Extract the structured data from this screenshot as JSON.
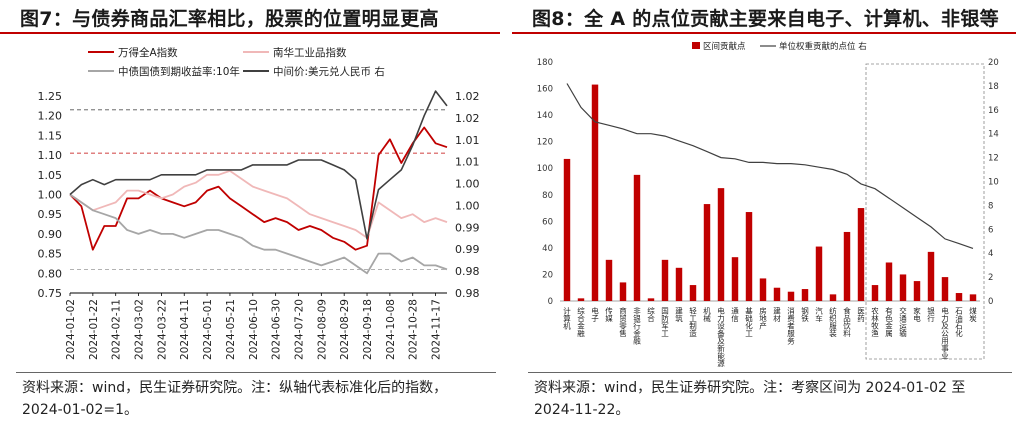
{
  "left": {
    "title": "图7：与债券商品汇率相比，股票的位置明显更高",
    "note_line1": "资料来源：wind，民生证券研究院。注：纵轴代表标准化后的指数，",
    "note_line2": "2024-01-02=1。",
    "chart_data": {
      "type": "line",
      "x": [
        "2024-01-02",
        "2024-01-12",
        "2024-01-22",
        "2024-02-01",
        "2024-02-11",
        "2024-02-21",
        "2024-03-02",
        "2024-03-12",
        "2024-03-22",
        "2024-04-01",
        "2024-04-11",
        "2024-04-21",
        "2024-05-01",
        "2024-05-11",
        "2024-05-21",
        "2024-05-31",
        "2024-06-10",
        "2024-06-20",
        "2024-06-30",
        "2024-07-10",
        "2024-07-20",
        "2024-07-30",
        "2024-08-09",
        "2024-08-19",
        "2024-08-29",
        "2024-09-08",
        "2024-09-18",
        "2024-09-28",
        "2024-10-08",
        "2024-10-18",
        "2024-10-28",
        "2024-11-07",
        "2024-11-17",
        "2024-11-22"
      ],
      "xticks": [
        "2024-01-02",
        "2024-01-22",
        "2024-02-11",
        "2024-03-02",
        "2024-03-22",
        "2024-04-11",
        "2024-05-01",
        "2024-05-21",
        "2024-06-10",
        "2024-06-30",
        "2024-07-20",
        "2024-08-09",
        "2024-08-29",
        "2024-09-18",
        "2024-10-08",
        "2024-10-28",
        "2024-11-17"
      ],
      "ylim_left": [
        0.75,
        1.25
      ],
      "yticks_left": [
        "0.75",
        "0.80",
        "0.85",
        "0.90",
        "0.95",
        "1.00",
        "1.05",
        "1.10",
        "1.15",
        "1.20",
        "1.25"
      ],
      "ylim_right": [
        0.98,
        1.02
      ],
      "yticks_right": [
        "0.98",
        "0.98",
        "0.99",
        "0.99",
        "1.00",
        "1.00",
        "1.01",
        "1.01",
        "1.02",
        "1.02"
      ],
      "ref_lines_left": [
        1.215,
        1.105,
        0.81
      ],
      "series": [
        {
          "name": "万得全A指数",
          "axis": "left",
          "color": "#c00000",
          "values": [
            1.0,
            0.97,
            0.86,
            0.92,
            0.92,
            0.99,
            0.99,
            1.01,
            0.99,
            0.98,
            0.97,
            0.98,
            1.01,
            1.02,
            0.99,
            0.97,
            0.95,
            0.93,
            0.94,
            0.93,
            0.91,
            0.92,
            0.91,
            0.89,
            0.88,
            0.86,
            0.87,
            1.1,
            1.14,
            1.08,
            1.13,
            1.17,
            1.13,
            1.12
          ]
        },
        {
          "name": "南华工业品指数",
          "axis": "left",
          "color": "#f0b8b8",
          "values": [
            1.0,
            0.98,
            0.96,
            0.97,
            0.98,
            1.01,
            1.01,
            1.0,
            0.99,
            1.0,
            1.02,
            1.03,
            1.05,
            1.05,
            1.06,
            1.04,
            1.02,
            1.01,
            1.0,
            0.99,
            0.97,
            0.95,
            0.94,
            0.93,
            0.92,
            0.91,
            0.89,
            0.98,
            0.96,
            0.94,
            0.95,
            0.93,
            0.94,
            0.93
          ]
        },
        {
          "name": "中债国债到期收益率:10年",
          "axis": "left",
          "color": "#a6a6a6",
          "values": [
            1.0,
            0.98,
            0.96,
            0.95,
            0.94,
            0.91,
            0.9,
            0.91,
            0.9,
            0.9,
            0.89,
            0.9,
            0.91,
            0.91,
            0.9,
            0.89,
            0.87,
            0.86,
            0.86,
            0.85,
            0.84,
            0.83,
            0.82,
            0.83,
            0.84,
            0.82,
            0.8,
            0.85,
            0.85,
            0.83,
            0.84,
            0.82,
            0.82,
            0.81
          ]
        },
        {
          "name": "中间价:美元兑人民币 右",
          "axis": "right",
          "color": "#404040",
          "values": [
            1.0,
            1.002,
            1.003,
            1.002,
            1.003,
            1.003,
            1.003,
            1.003,
            1.004,
            1.004,
            1.004,
            1.004,
            1.005,
            1.005,
            1.005,
            1.005,
            1.006,
            1.006,
            1.006,
            1.006,
            1.007,
            1.007,
            1.007,
            1.006,
            1.005,
            1.003,
            0.991,
            1.001,
            1.003,
            1.005,
            1.01,
            1.016,
            1.021,
            1.018
          ]
        }
      ]
    }
  },
  "right": {
    "title": "图8：全 A 的点位贡献主要来自电子、计算机、非银等",
    "note_line1": "资料来源：wind，民生证券研究院。注：考察区间为 2024-01-02 至",
    "note_line2": "2024-11-22。",
    "chart_data": {
      "type": "bar",
      "categories": [
        "计算机",
        "综合金融",
        "电子",
        "传媒",
        "商贸零售",
        "非银行金融",
        "综合",
        "国防军工",
        "建筑",
        "轻工制造",
        "机械",
        "电力设备及新能源",
        "通信",
        "基础化工",
        "房地产",
        "建材",
        "消费者服务",
        "钢铁",
        "汽车",
        "纺织服装",
        "食品饮料",
        "医药",
        "农林牧渔",
        "有色金属",
        "交通运输",
        "家电",
        "银行",
        "电力及公用事业",
        "石油石化",
        "煤炭"
      ],
      "series": [
        {
          "name": "区间贡献点",
          "axis": "left",
          "color": "#c00000",
          "values": [
            107,
            2,
            163,
            31,
            14,
            95,
            2,
            31,
            25,
            12,
            73,
            85,
            33,
            67,
            17,
            10,
            7,
            9,
            41,
            5,
            52,
            70,
            12,
            29,
            20,
            15,
            37,
            18,
            6,
            5
          ]
        },
        {
          "name": "单位权重贡献的点位 右",
          "axis": "right",
          "color": "#404040",
          "values": [
            18.2,
            16.2,
            15.0,
            14.7,
            14.4,
            14.0,
            14.0,
            13.8,
            13.4,
            13.0,
            12.5,
            12.0,
            11.9,
            11.6,
            11.6,
            11.5,
            11.5,
            11.4,
            11.2,
            11.0,
            10.6,
            9.8,
            9.4,
            8.6,
            7.8,
            7.0,
            6.2,
            5.2,
            4.8,
            4.4
          ]
        }
      ],
      "ylim_left": [
        0,
        180
      ],
      "yticks_left": [
        "0",
        "20",
        "40",
        "60",
        "80",
        "100",
        "120",
        "140",
        "160",
        "180"
      ],
      "ylim_right": [
        0,
        20
      ],
      "yticks_right": [
        "0",
        "2",
        "4",
        "6",
        "8",
        "10",
        "12",
        "14",
        "16",
        "18",
        "20"
      ],
      "highlight_from": "农林牧渔"
    }
  }
}
